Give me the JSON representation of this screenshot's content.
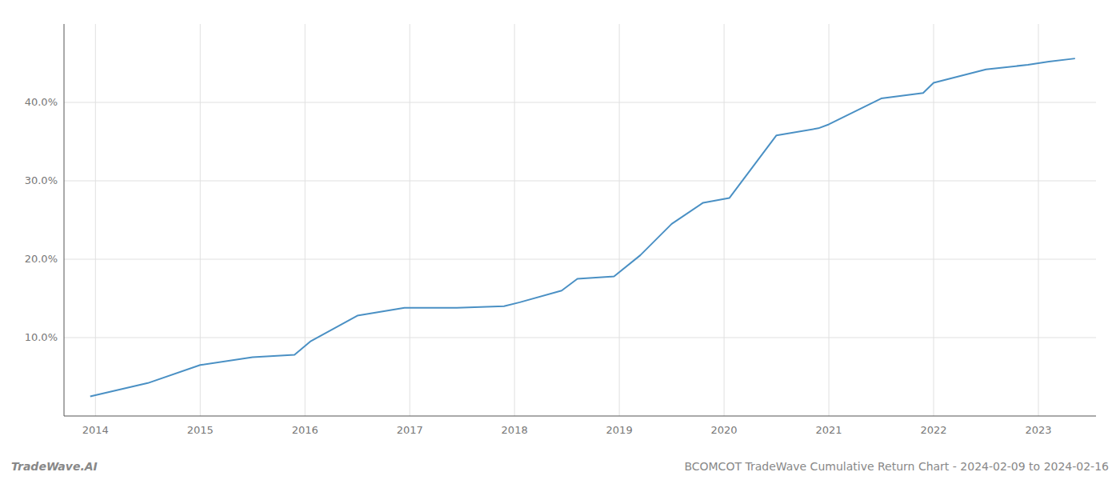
{
  "chart_data": {
    "type": "line",
    "title": "BCOMCOT TradeWave Cumulative Return Chart - 2024-02-09 to 2024-02-16",
    "annotations": [
      "TradeWave.AI"
    ],
    "color": "#4a90c4",
    "grid": true,
    "x": [
      2013.95,
      2014.5,
      2015.0,
      2015.5,
      2015.9,
      2016.05,
      2016.5,
      2016.95,
      2017.45,
      2017.9,
      2018.05,
      2018.45,
      2018.6,
      2018.95,
      2019.2,
      2019.5,
      2019.8,
      2020.05,
      2020.5,
      2020.9,
      2021.0,
      2021.5,
      2021.9,
      2022.0,
      2022.5,
      2022.9,
      2023.1,
      2023.35
    ],
    "values": [
      2.5,
      4.2,
      6.5,
      7.5,
      7.8,
      9.5,
      12.8,
      13.8,
      13.8,
      14.0,
      14.5,
      16.0,
      17.5,
      17.8,
      20.5,
      24.5,
      27.2,
      27.8,
      35.8,
      36.7,
      37.2,
      40.5,
      41.2,
      42.5,
      44.2,
      44.8,
      45.2,
      45.6
    ],
    "xlim": [
      2013.7,
      2023.55
    ],
    "xticks": [
      2014,
      2015,
      2016,
      2017,
      2018,
      2019,
      2020,
      2021,
      2022,
      2023
    ],
    "ylim": [
      0,
      50
    ],
    "yticks": [
      {
        "value": 10.0,
        "label": "10.0%"
      },
      {
        "value": 20.0,
        "label": "20.0%"
      },
      {
        "value": 30.0,
        "label": "30.0%"
      },
      {
        "value": 40.0,
        "label": "40.0%"
      }
    ]
  }
}
